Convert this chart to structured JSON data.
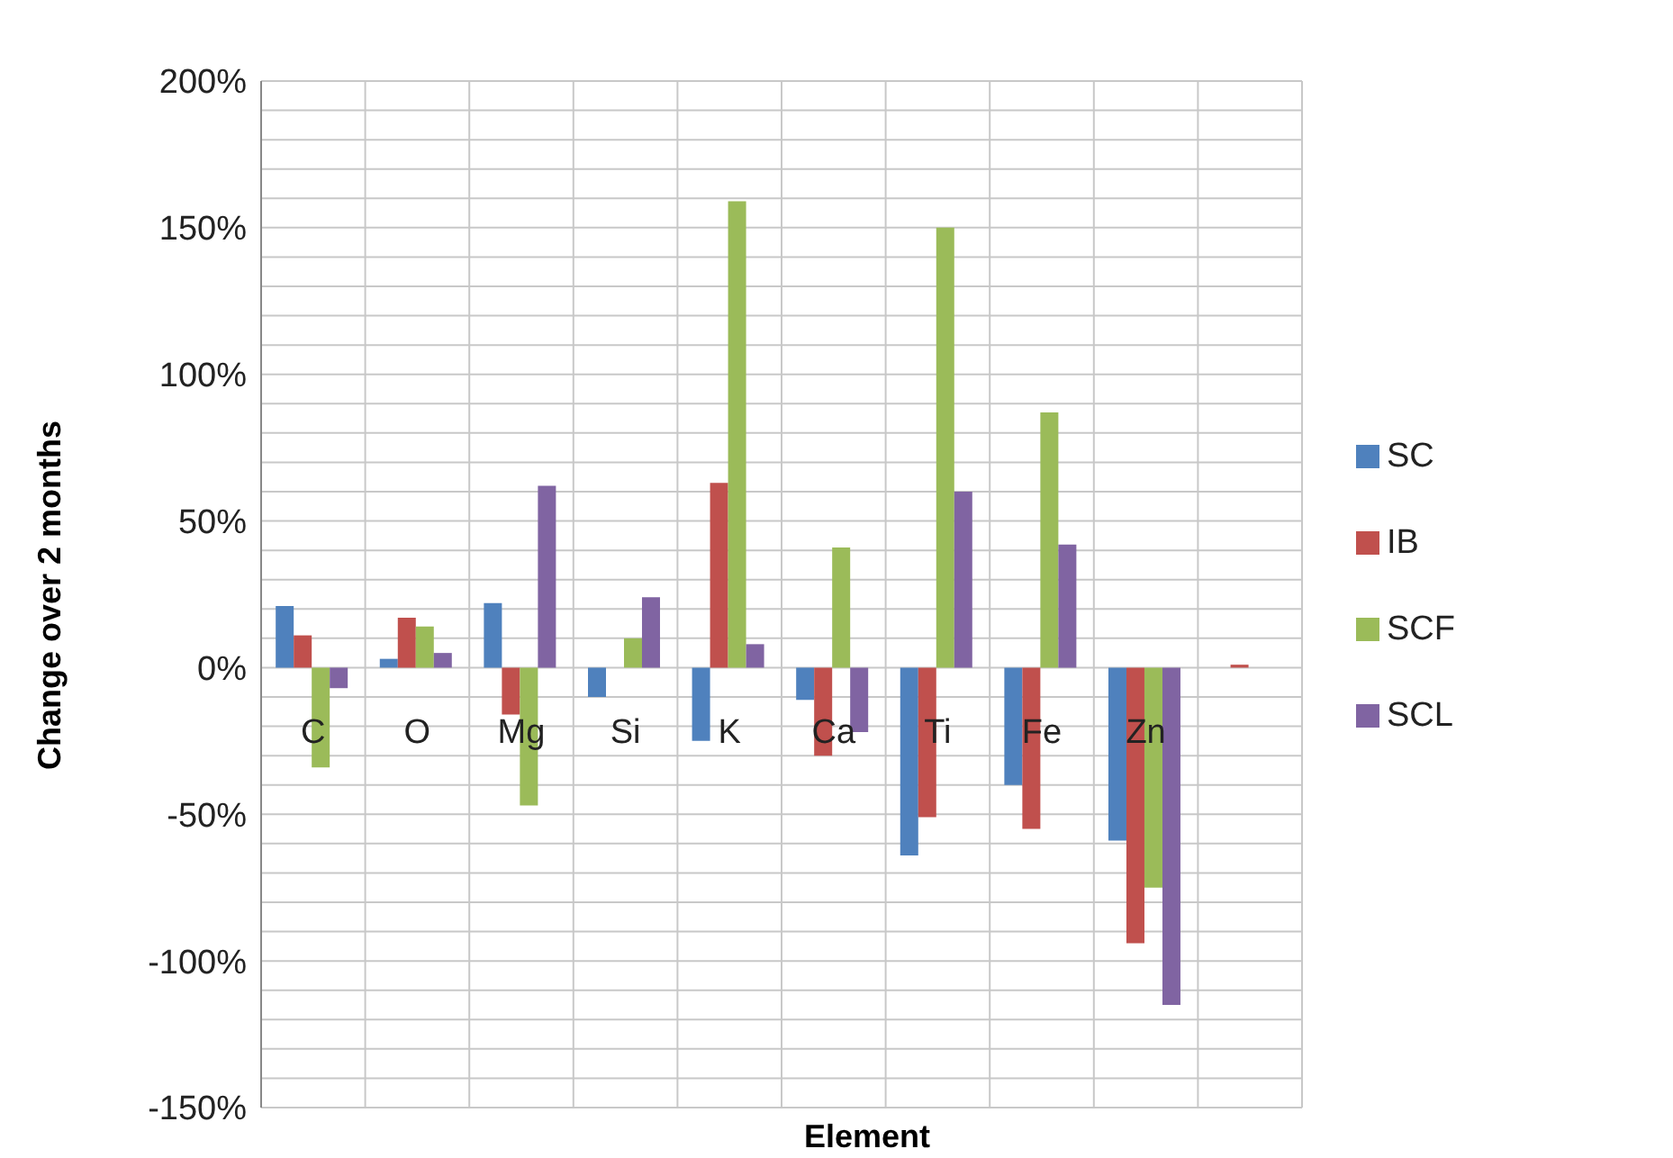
{
  "chart_data": {
    "type": "bar",
    "xlabel": "Element",
    "ylabel": "Change over 2 months",
    "categories": [
      "C",
      "O",
      "Mg",
      "Si",
      "K",
      "Ca",
      "Ti",
      "Fe",
      "Zn",
      null
    ],
    "series": [
      {
        "name": "SC",
        "color": "#4f81bd",
        "values": [
          21,
          3,
          22,
          -10,
          -25,
          -11,
          -64,
          -40,
          -59,
          null
        ]
      },
      {
        "name": "IB",
        "color": "#c0504d",
        "values": [
          11,
          17,
          -16,
          0,
          63,
          -30,
          -51,
          -55,
          -94,
          1
        ]
      },
      {
        "name": "SCF",
        "color": "#9bbb59",
        "values": [
          -34,
          14,
          -47,
          10,
          159,
          41,
          150,
          87,
          -75,
          null
        ]
      },
      {
        "name": "SCL",
        "color": "#8064a2",
        "values": [
          -7,
          5,
          62,
          24,
          8,
          -22,
          60,
          42,
          -115,
          null
        ]
      }
    ],
    "ylim": [
      -150,
      200
    ],
    "yticks": [
      {
        "value": -150,
        "label": "-150%"
      },
      {
        "value": -140,
        "label": null
      },
      {
        "value": -130,
        "label": null
      },
      {
        "value": -120,
        "label": null
      },
      {
        "value": -110,
        "label": null
      },
      {
        "value": -100,
        "label": "-100%"
      },
      {
        "value": -90,
        "label": null
      },
      {
        "value": -80,
        "label": null
      },
      {
        "value": -70,
        "label": null
      },
      {
        "value": -60,
        "label": null
      },
      {
        "value": -50,
        "label": "-50%"
      },
      {
        "value": -40,
        "label": null
      },
      {
        "value": -30,
        "label": null
      },
      {
        "value": -20,
        "label": null
      },
      {
        "value": -10,
        "label": null
      },
      {
        "value": 0,
        "label": "0%"
      },
      {
        "value": 10,
        "label": null
      },
      {
        "value": 20,
        "label": null
      },
      {
        "value": 30,
        "label": null
      },
      {
        "value": 40,
        "label": null
      },
      {
        "value": 50,
        "label": "50%"
      },
      {
        "value": 60,
        "label": null
      },
      {
        "value": 70,
        "label": null
      },
      {
        "value": 80,
        "label": null
      },
      {
        "value": 90,
        "label": null
      },
      {
        "value": 100,
        "label": "100%"
      },
      {
        "value": 110,
        "label": null
      },
      {
        "value": 120,
        "label": null
      },
      {
        "value": 130,
        "label": null
      },
      {
        "value": 140,
        "label": null
      },
      {
        "value": 150,
        "label": "150%"
      },
      {
        "value": 160,
        "label": null
      },
      {
        "value": 170,
        "label": null
      },
      {
        "value": 180,
        "label": null
      },
      {
        "value": 190,
        "label": null
      },
      {
        "value": 200,
        "label": "200%"
      }
    ],
    "grid": true,
    "legend": "right"
  }
}
